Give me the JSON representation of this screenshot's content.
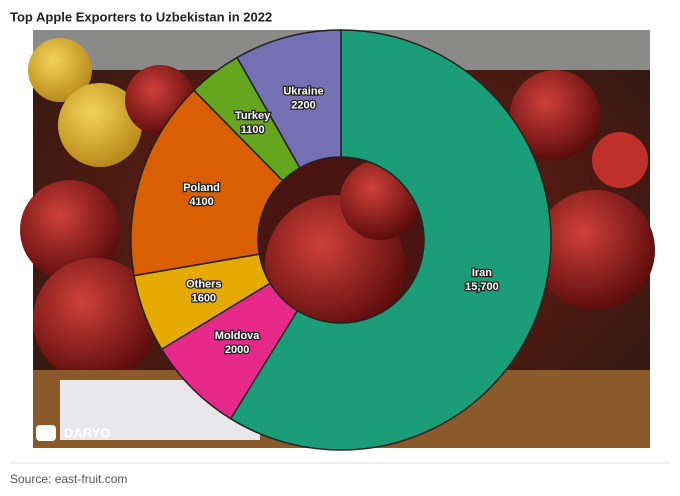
{
  "chart_data": {
    "type": "donut",
    "title": "Top Apple Exporters to Uzbekistan in 2022",
    "categories": [
      "Iran",
      "Moldova",
      "Others",
      "Poland",
      "Turkey",
      "Ukraine"
    ],
    "values": [
      15700,
      2000,
      1600,
      4100,
      1100,
      2200
    ],
    "value_labels": [
      "15,700",
      "2000",
      "1600",
      "4100",
      "1100",
      "2200"
    ],
    "colors": [
      "#1b9e77",
      "#e7298a",
      "#e6ab02",
      "#d95f02",
      "#66a61e",
      "#7570b3"
    ],
    "watermark": "DARYO",
    "source": "Source: east-fruit.com"
  }
}
